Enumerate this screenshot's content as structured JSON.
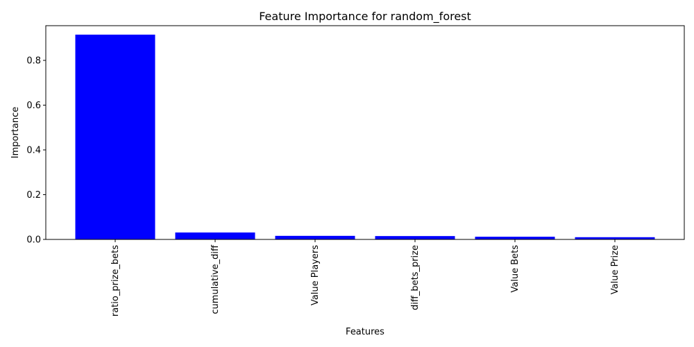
{
  "chart_data": {
    "type": "bar",
    "title": "Feature Importance for random_forest",
    "xlabel": "Features",
    "ylabel": "Importance",
    "categories": [
      "ratio_prize_bets",
      "cumulative_diff",
      "Value Players",
      "diff_bets_prize",
      "Value Bets",
      "Value Prize"
    ],
    "values": [
      0.915,
      0.031,
      0.016,
      0.015,
      0.012,
      0.01
    ],
    "ylim": [
      0,
      0.955
    ],
    "yticks": [
      0.0,
      0.2,
      0.4,
      0.6,
      0.8
    ],
    "ytick_labels": [
      "0.0",
      "0.2",
      "0.4",
      "0.6",
      "0.8"
    ],
    "bar_color": "#0000ff",
    "grid": false,
    "legend": "none"
  }
}
